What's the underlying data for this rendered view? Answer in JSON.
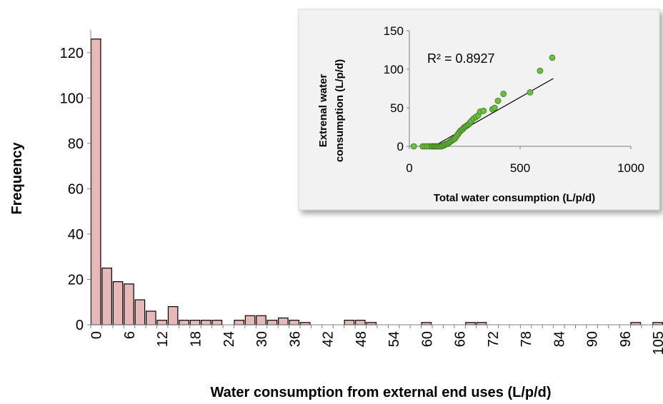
{
  "chart_data": [
    {
      "type": "bar",
      "title": "",
      "xlabel": "Water consumption from external end uses (L/p/d)",
      "ylabel": "Frequency",
      "ylim": [
        0,
        130
      ],
      "yticks": [
        0,
        20,
        40,
        60,
        80,
        100,
        120
      ],
      "bin_width": 2,
      "x_tick_labels": [
        "0",
        "6",
        "12",
        "18",
        "24",
        "30",
        "36",
        "42",
        "48",
        "54",
        "60",
        "66",
        "72",
        "78",
        "84",
        "90",
        "96",
        "105"
      ],
      "values": [
        126,
        25,
        19,
        18,
        11,
        6,
        2,
        8,
        2,
        2,
        2,
        2,
        0,
        2,
        4,
        4,
        2,
        3,
        2,
        1,
        0,
        0,
        0,
        2,
        2,
        1,
        0,
        0,
        0,
        0,
        1,
        0,
        0,
        0,
        1,
        1,
        0,
        0,
        0,
        0,
        0,
        0,
        0,
        0,
        0,
        0,
        0,
        0,
        0,
        1,
        0,
        1
      ],
      "color": "#e6b8b7",
      "edge_color": "#000000"
    },
    {
      "type": "scatter",
      "title": "",
      "xlabel": "Total water consumption (L/p/d)",
      "ylabel_lines": [
        "Extrenal  water",
        "consumption (L/p/d)"
      ],
      "xlim": [
        0,
        1000
      ],
      "ylim": [
        0,
        150
      ],
      "xticks": [
        0,
        500,
        1000
      ],
      "yticks": [
        0,
        50,
        100,
        150
      ],
      "annotation": "R² = 0.8927",
      "marker_color": "#6abf3f",
      "trendline": {
        "x": [
          110,
          650
        ],
        "y": [
          0,
          88
        ]
      },
      "points": [
        [
          20,
          0
        ],
        [
          60,
          0
        ],
        [
          70,
          0
        ],
        [
          80,
          0
        ],
        [
          90,
          0
        ],
        [
          100,
          0
        ],
        [
          105,
          0
        ],
        [
          110,
          0
        ],
        [
          115,
          0
        ],
        [
          120,
          0
        ],
        [
          125,
          0
        ],
        [
          130,
          0
        ],
        [
          135,
          0
        ],
        [
          140,
          0
        ],
        [
          145,
          0
        ],
        [
          150,
          1
        ],
        [
          155,
          1
        ],
        [
          160,
          2
        ],
        [
          165,
          3
        ],
        [
          170,
          3
        ],
        [
          175,
          4
        ],
        [
          180,
          5
        ],
        [
          185,
          6
        ],
        [
          190,
          7
        ],
        [
          195,
          8
        ],
        [
          200,
          9
        ],
        [
          205,
          10
        ],
        [
          210,
          12
        ],
        [
          215,
          14
        ],
        [
          220,
          16
        ],
        [
          225,
          18
        ],
        [
          230,
          20
        ],
        [
          235,
          21
        ],
        [
          240,
          22
        ],
        [
          245,
          24
        ],
        [
          250,
          25
        ],
        [
          255,
          26
        ],
        [
          260,
          27
        ],
        [
          265,
          28
        ],
        [
          270,
          29
        ],
        [
          275,
          31
        ],
        [
          280,
          33
        ],
        [
          290,
          36
        ],
        [
          300,
          38
        ],
        [
          310,
          40
        ],
        [
          320,
          45
        ],
        [
          335,
          46
        ],
        [
          375,
          48
        ],
        [
          385,
          50
        ],
        [
          400,
          59
        ],
        [
          425,
          68
        ],
        [
          545,
          70
        ],
        [
          590,
          98
        ],
        [
          645,
          115
        ]
      ]
    }
  ]
}
